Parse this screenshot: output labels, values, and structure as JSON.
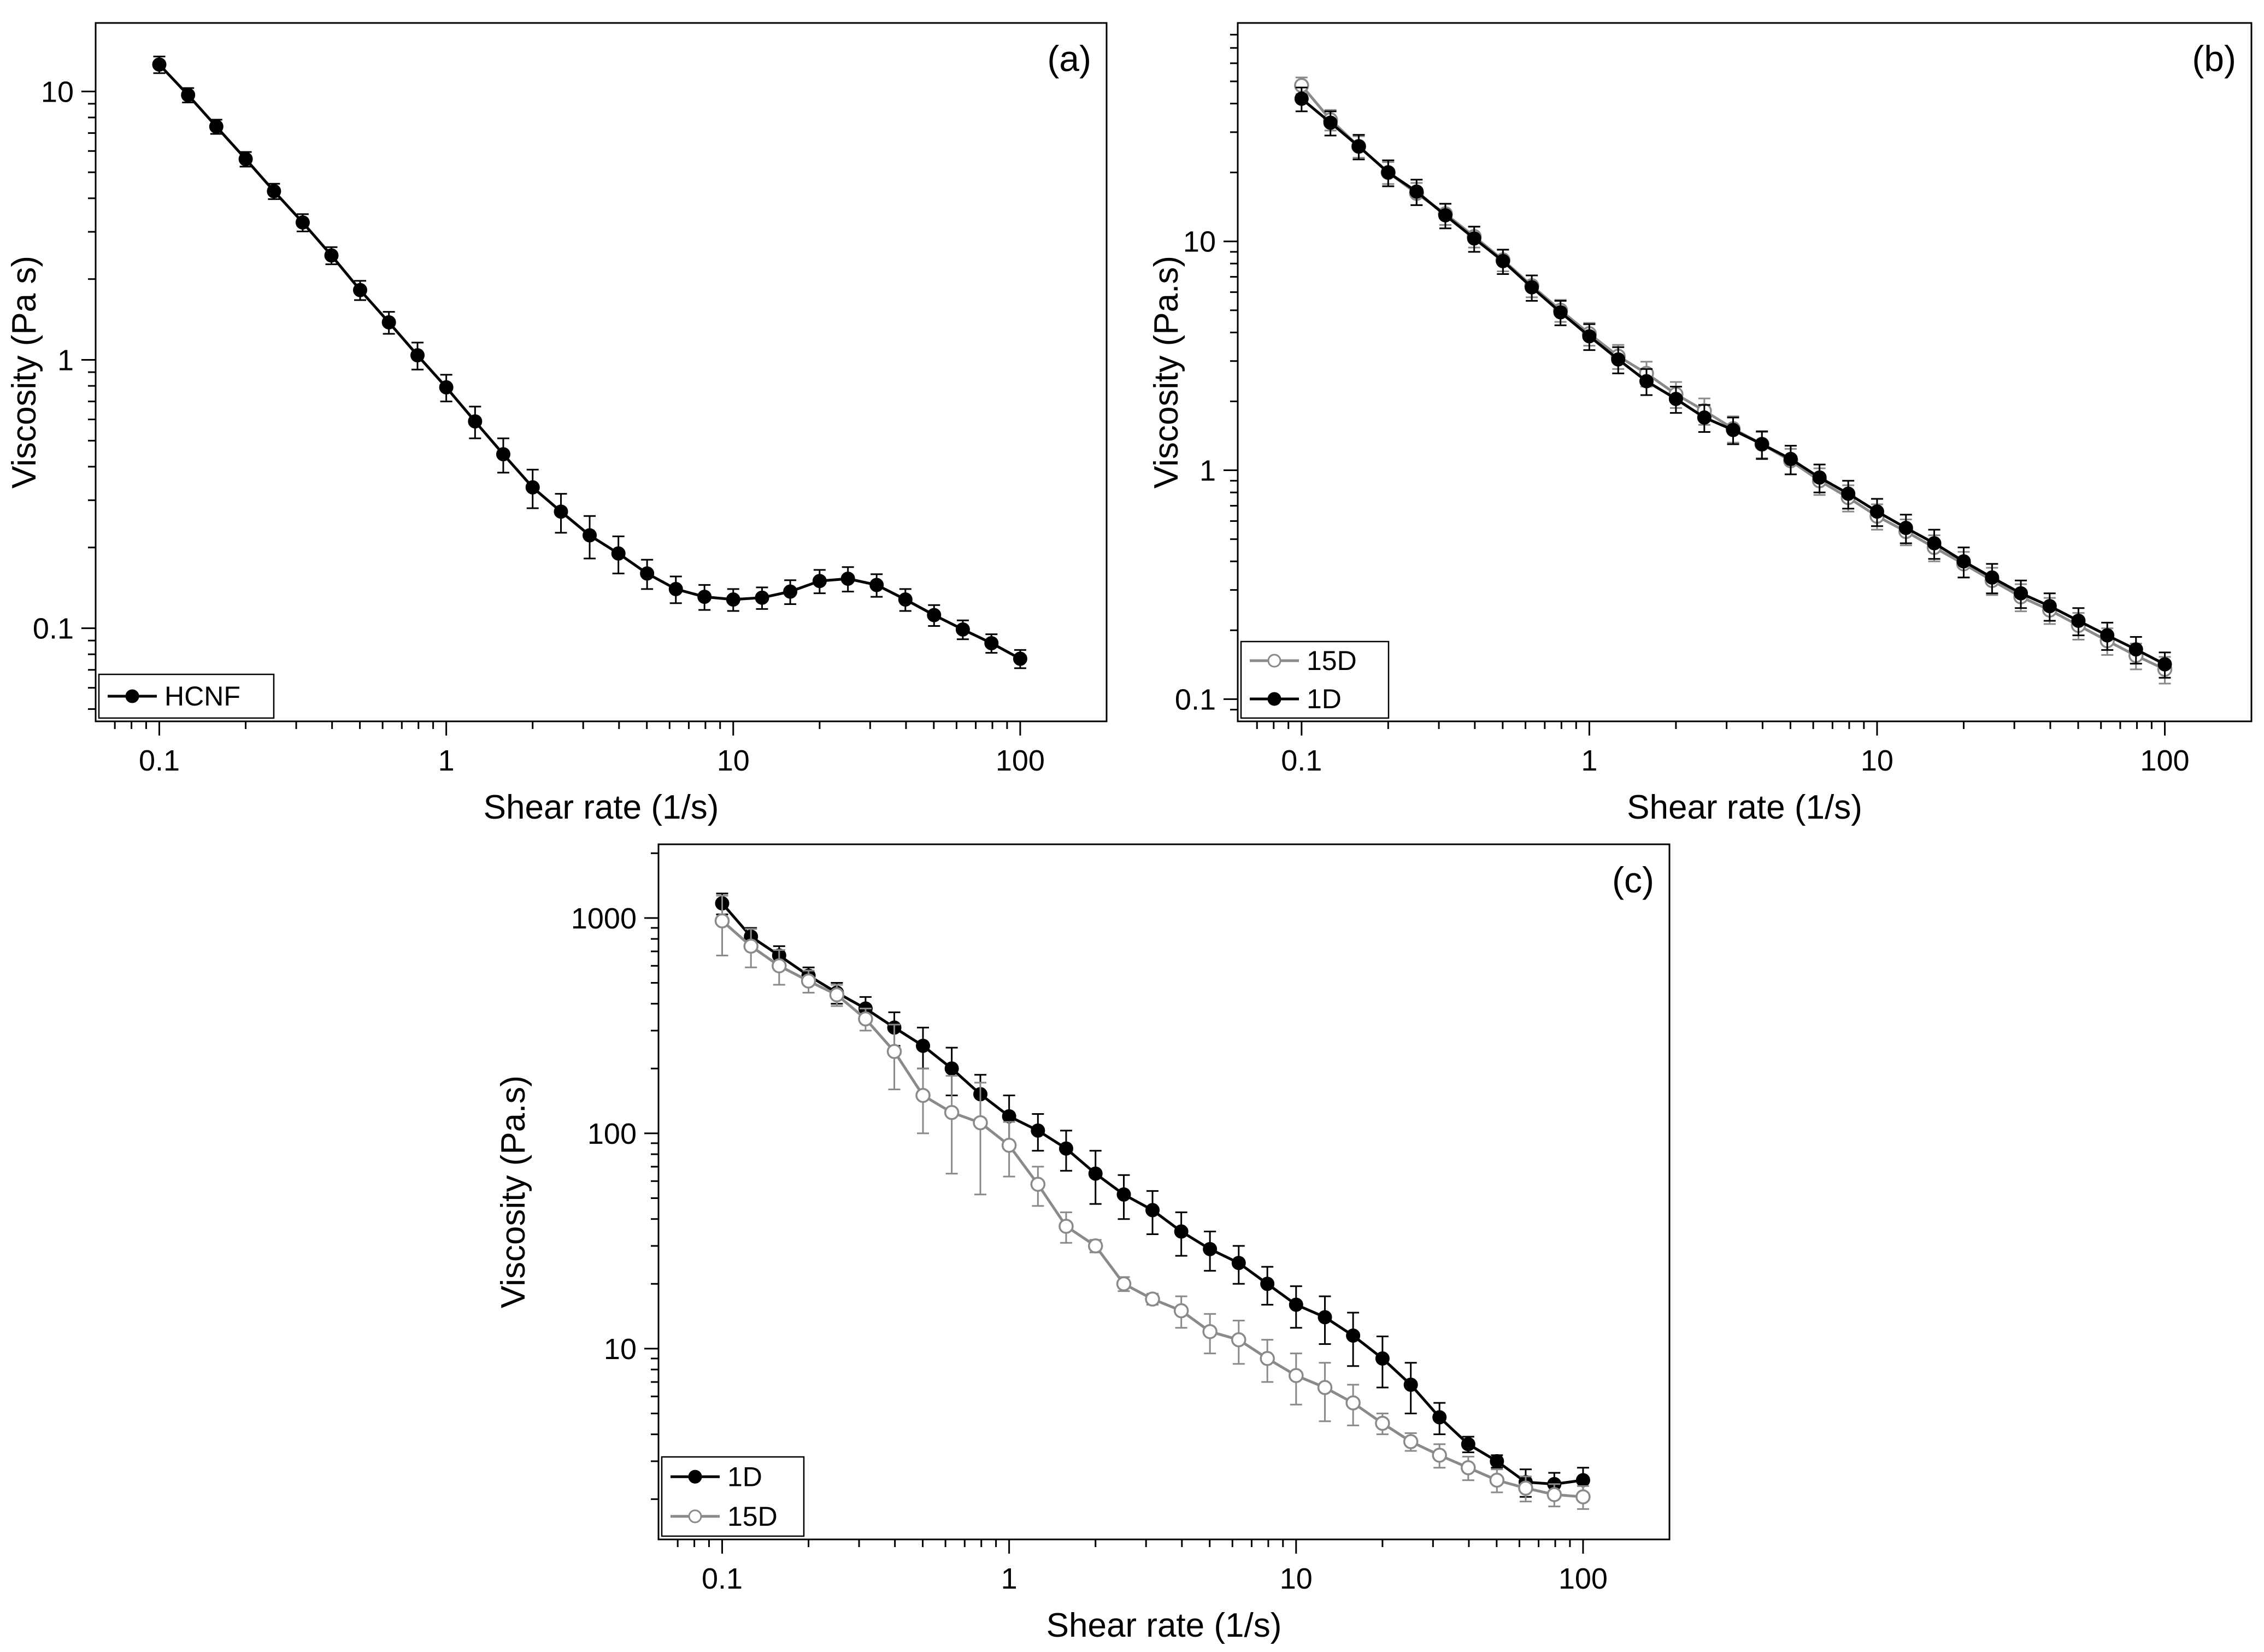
{
  "figure": {
    "panels": [
      "a",
      "b",
      "c"
    ]
  },
  "chart_data": [
    {
      "id": "a",
      "type": "line",
      "panel_label": "(a)",
      "xlabel": "Shear rate (1/s)",
      "ylabel": "Viscosity (Pa s)",
      "xscale": "log",
      "yscale": "log",
      "xlim": [
        0.06,
        200
      ],
      "ylim": [
        0.045,
        18
      ],
      "xticks": [
        0.1,
        1,
        10,
        100
      ],
      "xtick_labels": [
        "0.1",
        "1",
        "10",
        "100"
      ],
      "yticks": [
        0.1,
        1,
        10
      ],
      "ytick_labels": [
        "0.1",
        "1",
        "10"
      ],
      "legend_position": "bottom-left",
      "x": [
        0.1,
        0.126,
        0.158,
        0.2,
        0.251,
        0.316,
        0.398,
        0.501,
        0.631,
        0.794,
        1,
        1.26,
        1.58,
        2,
        2.51,
        3.16,
        3.98,
        5.01,
        6.31,
        7.94,
        10,
        12.6,
        15.8,
        20,
        25.1,
        31.6,
        39.8,
        50.1,
        63.1,
        79.4,
        100
      ],
      "series": [
        {
          "name": "HCNF",
          "color": "#000000",
          "marker": "filled-circle",
          "values": [
            12.6,
            9.7,
            7.4,
            5.6,
            4.25,
            3.25,
            2.45,
            1.82,
            1.38,
            1.04,
            0.79,
            0.59,
            0.445,
            0.335,
            0.272,
            0.222,
            0.19,
            0.16,
            0.14,
            0.131,
            0.128,
            0.13,
            0.137,
            0.15,
            0.153,
            0.145,
            0.128,
            0.112,
            0.099,
            0.088,
            0.077
          ],
          "errors": [
            0.9,
            0.6,
            0.45,
            0.35,
            0.28,
            0.24,
            0.18,
            0.15,
            0.13,
            0.12,
            0.09,
            0.08,
            0.065,
            0.055,
            0.045,
            0.04,
            0.03,
            0.02,
            0.016,
            0.014,
            0.012,
            0.012,
            0.014,
            0.015,
            0.016,
            0.014,
            0.012,
            0.01,
            0.008,
            0.007,
            0.006
          ]
        }
      ]
    },
    {
      "id": "b",
      "type": "line",
      "panel_label": "(b)",
      "xlabel": "Shear rate (1/s)",
      "ylabel": "Viscosity (Pa.s)",
      "xscale": "log",
      "yscale": "log",
      "xlim": [
        0.06,
        200
      ],
      "ylim": [
        0.08,
        90
      ],
      "xticks": [
        0.1,
        1,
        10,
        100
      ],
      "xtick_labels": [
        "0.1",
        "1",
        "10",
        "100"
      ],
      "yticks": [
        0.1,
        1,
        10
      ],
      "ytick_labels": [
        "0.1",
        "1",
        "10"
      ],
      "legend_position": "bottom-left",
      "x": [
        0.1,
        0.126,
        0.158,
        0.2,
        0.251,
        0.316,
        0.398,
        0.501,
        0.631,
        0.794,
        1,
        1.26,
        1.58,
        2,
        2.51,
        3.16,
        3.98,
        5.01,
        6.31,
        7.94,
        10,
        12.6,
        15.8,
        20,
        25.1,
        31.6,
        39.8,
        50.1,
        63.1,
        79.4,
        100
      ],
      "series": [
        {
          "name": "15D",
          "color": "#8a8a8a",
          "marker": "open-circle",
          "values": [
            48,
            34,
            26,
            20,
            16.2,
            13.2,
            10.5,
            8.3,
            6.4,
            5.0,
            3.95,
            3.15,
            2.65,
            2.15,
            1.82,
            1.52,
            1.3,
            1.1,
            0.9,
            0.76,
            0.63,
            0.54,
            0.46,
            0.39,
            0.33,
            0.28,
            0.245,
            0.21,
            0.18,
            0.155,
            0.135
          ],
          "errors": [
            4,
            3.5,
            2.8,
            2.2,
            1.8,
            1.4,
            1.1,
            0.9,
            0.7,
            0.55,
            0.45,
            0.38,
            0.33,
            0.28,
            0.24,
            0.2,
            0.17,
            0.14,
            0.12,
            0.1,
            0.08,
            0.07,
            0.06,
            0.05,
            0.045,
            0.038,
            0.032,
            0.028,
            0.024,
            0.02,
            0.018
          ]
        },
        {
          "name": "1D",
          "color": "#000000",
          "marker": "filled-circle",
          "values": [
            42,
            33,
            26,
            20,
            16.5,
            13,
            10.3,
            8.2,
            6.3,
            4.9,
            3.85,
            3.05,
            2.45,
            2.05,
            1.7,
            1.5,
            1.3,
            1.12,
            0.93,
            0.79,
            0.66,
            0.56,
            0.48,
            0.4,
            0.34,
            0.29,
            0.255,
            0.22,
            0.19,
            0.165,
            0.142
          ],
          "errors": [
            5,
            4,
            3.2,
            2.6,
            2.1,
            1.6,
            1.3,
            1.0,
            0.8,
            0.6,
            0.5,
            0.4,
            0.32,
            0.27,
            0.23,
            0.2,
            0.18,
            0.16,
            0.13,
            0.11,
            0.09,
            0.08,
            0.07,
            0.06,
            0.05,
            0.04,
            0.035,
            0.03,
            0.026,
            0.022,
            0.018
          ]
        }
      ]
    },
    {
      "id": "c",
      "type": "line",
      "panel_label": "(c)",
      "xlabel": "Shear rate (1/s)",
      "ylabel": "Viscosity (Pa.s)",
      "xscale": "log",
      "yscale": "log",
      "xlim": [
        0.06,
        200
      ],
      "ylim": [
        1.3,
        2200
      ],
      "xticks": [
        0.1,
        1,
        10,
        100
      ],
      "xtick_labels": [
        "0.1",
        "1",
        "10",
        "100"
      ],
      "yticks": [
        10,
        100,
        1000
      ],
      "ytick_labels": [
        "10",
        "100",
        "1000"
      ],
      "legend_position": "bottom-left",
      "x": [
        0.1,
        0.126,
        0.158,
        0.2,
        0.251,
        0.316,
        0.398,
        0.501,
        0.631,
        0.794,
        1,
        1.26,
        1.58,
        2,
        2.51,
        3.16,
        3.98,
        5.01,
        6.31,
        7.94,
        10,
        12.6,
        15.8,
        20,
        25.1,
        31.6,
        39.8,
        50.1,
        63.1,
        79.4,
        100
      ],
      "series": [
        {
          "name": "1D",
          "color": "#000000",
          "marker": "filled-circle",
          "values": [
            1170,
            820,
            670,
            540,
            450,
            380,
            310,
            255,
            200,
            152,
            120,
            103,
            85,
            65,
            52,
            44,
            35,
            29,
            25,
            20,
            16,
            14,
            11.5,
            9,
            6.8,
            4.8,
            3.6,
            3.0,
            2.4,
            2.35,
            2.45
          ],
          "errors": [
            130,
            80,
            70,
            50,
            50,
            50,
            55,
            55,
            50,
            35,
            30,
            20,
            18,
            18,
            12,
            10,
            8,
            6,
            5,
            4,
            3.5,
            3.5,
            3.2,
            2.4,
            1.8,
            0.8,
            0.3,
            0.2,
            0.35,
            0.3,
            0.35
          ]
        },
        {
          "name": "15D",
          "color": "#8a8a8a",
          "marker": "open-circle",
          "values": [
            970,
            740,
            600,
            510,
            440,
            340,
            240,
            150,
            125,
            112,
            88,
            58,
            37,
            30,
            20,
            17,
            15,
            12,
            11,
            9,
            7.5,
            6.6,
            5.6,
            4.5,
            3.7,
            3.2,
            2.8,
            2.45,
            2.25,
            2.1,
            2.05
          ],
          "errors": [
            300,
            150,
            110,
            60,
            50,
            40,
            80,
            50,
            60,
            60,
            25,
            12,
            6,
            2,
            1.5,
            1.0,
            2.5,
            2.5,
            2.5,
            2.0,
            2.0,
            2.0,
            1.2,
            0.5,
            0.35,
            0.4,
            0.35,
            0.3,
            0.3,
            0.25,
            0.25
          ]
        }
      ]
    }
  ]
}
